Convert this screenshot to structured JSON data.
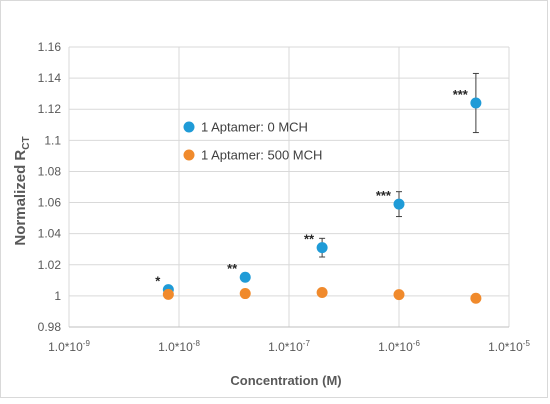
{
  "chart_data": {
    "type": "scatter",
    "title": "",
    "xlabel": "Concentration (M)",
    "ylabel": {
      "main": "Normalized R",
      "subscript": "CT"
    },
    "x_scale": "log",
    "xlim": [
      1e-09,
      1e-05
    ],
    "ylim": [
      0.98,
      1.16
    ],
    "grid": true,
    "legend_position": "center-left",
    "x_ticks": [
      {
        "value": 1e-09,
        "mantissa": "1.0*10",
        "exp": "-9"
      },
      {
        "value": 1e-08,
        "mantissa": "1.0*10",
        "exp": "-8"
      },
      {
        "value": 1e-07,
        "mantissa": "1.0*10",
        "exp": "-7"
      },
      {
        "value": 1e-06,
        "mantissa": "1.0*10",
        "exp": "-6"
      },
      {
        "value": 1e-05,
        "mantissa": "1.0*10",
        "exp": "-5"
      }
    ],
    "y_ticks": [
      {
        "value": 0.98,
        "label": "0.98"
      },
      {
        "value": 1.0,
        "label": "1"
      },
      {
        "value": 1.02,
        "label": "1.02"
      },
      {
        "value": 1.04,
        "label": "1.04"
      },
      {
        "value": 1.06,
        "label": "1.06"
      },
      {
        "value": 1.08,
        "label": "1.08"
      },
      {
        "value": 1.1,
        "label": "1.1"
      },
      {
        "value": 1.12,
        "label": "1.12"
      },
      {
        "value": 1.14,
        "label": "1.14"
      },
      {
        "value": 1.16,
        "label": "1.16"
      }
    ],
    "series": [
      {
        "name": "1 Aptamer: 0 MCH",
        "color": "#1f9bd7",
        "points": [
          {
            "x": 8e-09,
            "y": 1.004,
            "err": 0.0015,
            "sig": "*"
          },
          {
            "x": 4e-08,
            "y": 1.012,
            "err": 0.002,
            "sig": "**"
          },
          {
            "x": 2e-07,
            "y": 1.031,
            "err": 0.006,
            "sig": "**"
          },
          {
            "x": 1e-06,
            "y": 1.059,
            "err": 0.008,
            "sig": "***"
          },
          {
            "x": 5e-06,
            "y": 1.124,
            "err": 0.019,
            "sig": "***"
          }
        ]
      },
      {
        "name": "1 Aptamer: 500 MCH",
        "color": "#f08a2c",
        "points": [
          {
            "x": 8e-09,
            "y": 1.001,
            "err": 0
          },
          {
            "x": 4e-08,
            "y": 1.0015,
            "err": 0
          },
          {
            "x": 2e-07,
            "y": 1.0022,
            "err": 0
          },
          {
            "x": 1e-06,
            "y": 1.0008,
            "err": 0
          },
          {
            "x": 5e-06,
            "y": 0.9985,
            "err": 0
          }
        ]
      }
    ]
  }
}
